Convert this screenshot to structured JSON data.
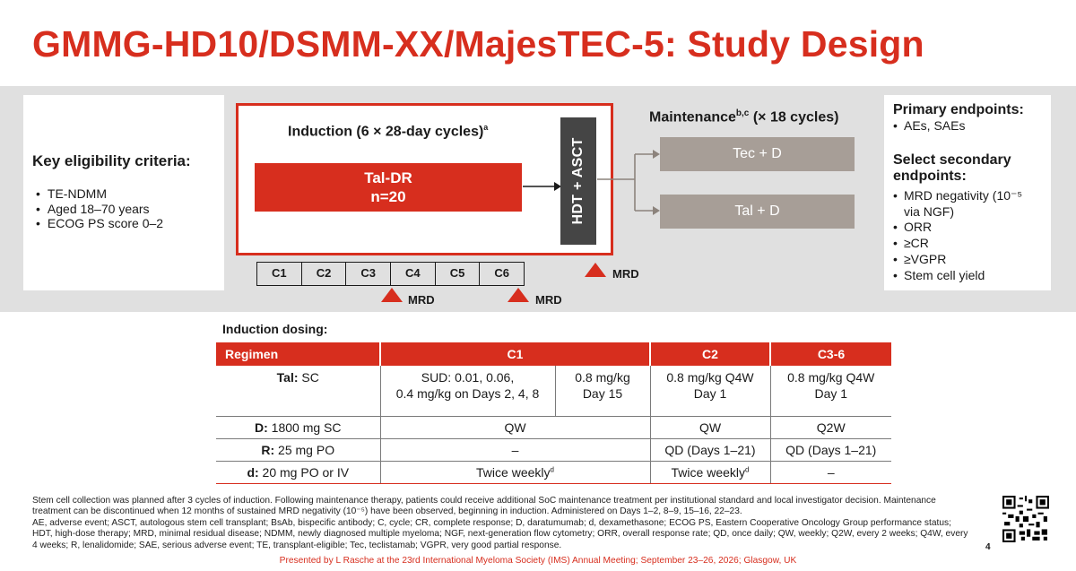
{
  "title": "GMMG-HD10/DSMM-XX/MajesTEC-5: Study Design",
  "eligibility": {
    "heading": "Key eligibility criteria:",
    "items": [
      "TE-NDMM",
      "Aged 18–70 years",
      "ECOG PS score 0–2"
    ]
  },
  "induction": {
    "title": "Induction (6 × 28-day cycles)",
    "title_sup": "a",
    "arm_name": "Tal-DR",
    "arm_n": "n=20",
    "cycles": [
      "C1",
      "C2",
      "C3",
      "C4",
      "C5",
      "C6"
    ],
    "mrd_label": "MRD"
  },
  "hdt_label": "HDT + ASCT",
  "maintenance": {
    "title": "Maintenance",
    "title_sup": "b,c",
    "title_suffix": " (× 18 cycles)",
    "arms": [
      "Tec + D",
      "Tal + D"
    ]
  },
  "endpoints": {
    "primary_heading": "Primary endpoints:",
    "primary_items": [
      "AEs, SAEs"
    ],
    "secondary_heading": "Select secondary endpoints:",
    "secondary_items": [
      "MRD negativity (10⁻⁵ via NGF)",
      "ORR",
      "≥CR",
      "≥VGPR",
      "Stem cell yield"
    ]
  },
  "dosing": {
    "label": "Induction dosing:",
    "headers": [
      "Regimen",
      "C1",
      "C2",
      "C3-6"
    ],
    "rows": [
      {
        "drug": "Tal:",
        "route": " SC",
        "c1a": "SUD: 0.01, 0.06,",
        "c1a2": "0.4 mg/kg on Days 2, 4, 8",
        "c1b": "0.8 mg/kg",
        "c1b2": "Day 15",
        "c2": "0.8 mg/kg Q4W",
        "c2b": "Day 1",
        "c36": "0.8 mg/kg Q4W",
        "c36b": "Day 1"
      },
      {
        "drug": "D:",
        "route": " 1800 mg SC",
        "c1": "QW",
        "c2": "QW",
        "c36": "Q2W"
      },
      {
        "drug": "R:",
        "route": " 25 mg PO",
        "c1": "–",
        "c2": "QD (Days 1–21)",
        "c36": "QD (Days 1–21)"
      },
      {
        "drug": "d:",
        "route": " 20 mg PO or IV",
        "c1": "Twice weekly",
        "c1_sup": "d",
        "c2": "Twice weekly",
        "c2_sup": "d",
        "c36": "–"
      }
    ]
  },
  "footnotes": {
    "line1": "Stem cell collection was planned after 3 cycles of induction. Following maintenance therapy, patients could receive additional SoC maintenance treatment per institutional standard and local investigator decision. Maintenance treatment can be discontinued when 12 months of sustained MRD negativity (10⁻⁵) have been observed, beginning in induction. Administered on Days 1–2, 8–9, 15–16, 22–23.",
    "line2": "AE, adverse event; ASCT, autologous stem cell transplant; BsAb, bispecific antibody; C, cycle; CR, complete response; D, daratumumab; d, dexamethasone; ECOG PS, Eastern Cooperative Oncology Group performance status; HDT, high-dose therapy; MRD, minimal residual disease; NDMM, newly diagnosed multiple myeloma; NGF, next-generation flow cytometry; ORR, overall response rate; QD, once daily; QW, weekly; Q2W, every 2 weeks; Q4W, every 4 weeks; R, lenalidomide; SAE, serious adverse event; TE, transplant-eligible; Tec, teclistamab; VGPR, very good partial response."
  },
  "page_number": "4",
  "presenter": "Presented by L Rasche at the 23rd International Myeloma Society (IMS) Annual Meeting; September 23–26, 2026; Glasgow, UK",
  "colors": {
    "accent": "#d72e1e",
    "dark": "#454545",
    "maint": "#a79e97",
    "band": "#e0e0e0"
  }
}
